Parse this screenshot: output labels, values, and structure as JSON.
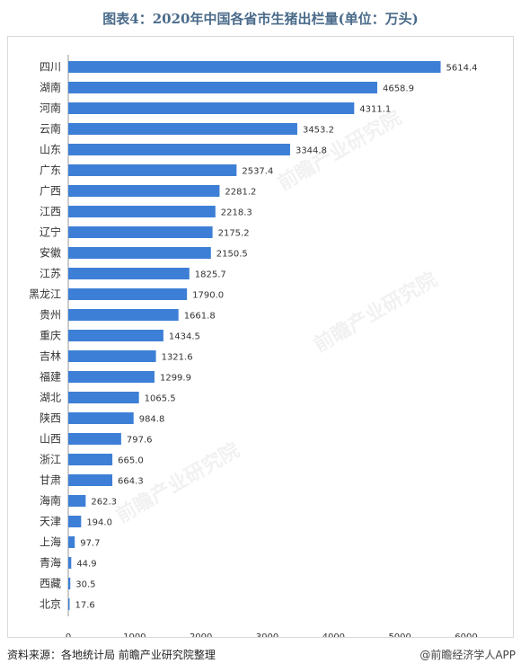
{
  "title": "图表4：2020年中国各省市生猪出栏量(单位：万头)",
  "footer": {
    "source": "资料来源：各地统计局 前瞻产业研究院整理",
    "watermark": "@前瞻经济学人APP"
  },
  "background_watermark": "前瞻产业研究院",
  "colors": {
    "bar": "#3d7fd6",
    "axis": "#999999",
    "text": "#333333",
    "title": "#4a6b8a"
  },
  "chart_data": {
    "type": "bar",
    "orientation": "horizontal",
    "title": "图表4：2020年中国各省市生猪出栏量(单位：万头)",
    "categories": [
      "四川",
      "湖南",
      "河南",
      "云南",
      "山东",
      "广东",
      "广西",
      "江西",
      "辽宁",
      "安徽",
      "江苏",
      "黑龙江",
      "贵州",
      "重庆",
      "吉林",
      "福建",
      "湖北",
      "陕西",
      "山西",
      "浙江",
      "甘肃",
      "海南",
      "天津",
      "上海",
      "青海",
      "西藏",
      "北京"
    ],
    "values": [
      5614.4,
      4658.9,
      4311.1,
      3453.2,
      3344.8,
      2537.4,
      2281.2,
      2218.3,
      2175.2,
      2150.5,
      1825.7,
      1790.0,
      1661.8,
      1434.5,
      1321.6,
      1299.9,
      1065.5,
      984.8,
      797.6,
      665.0,
      664.3,
      262.3,
      194.0,
      97.7,
      44.9,
      30.5,
      17.6
    ],
    "labels": [
      "5614.4",
      "4658.9",
      "4311.1",
      "3453.2",
      "3344.8",
      "2537.4",
      "2281.2",
      "2218.3",
      "2175.2",
      "2150.5",
      "1825.7",
      "1790.0",
      "1661.8",
      "1434.5",
      "1321.6",
      "1299.9",
      "1065.5",
      "984.8",
      "797.6",
      "665.0",
      "664.3",
      "262.3",
      "194.0",
      "97.7",
      "44.9",
      "30.5",
      "17.6"
    ],
    "xlim": [
      0,
      6000
    ],
    "xticks": [
      0,
      1000,
      2000,
      3000,
      4000,
      5000,
      6000
    ],
    "grid": false,
    "legend": "none"
  }
}
